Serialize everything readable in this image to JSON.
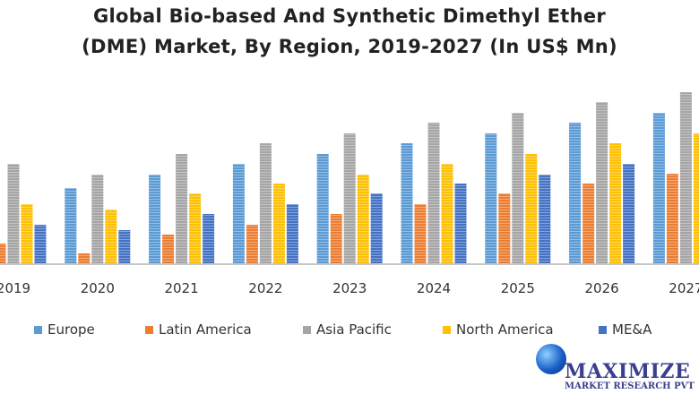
{
  "chart_data": {
    "type": "bar",
    "title_line1": "Global Bio-based And Synthetic Dimethyl Ether",
    "title_line2": "(DME) Market, By Region, 2019-2027 (In US$ Mn)",
    "xlabel": "",
    "ylabel": "",
    "ylim": [
      0,
      200
    ],
    "grid": false,
    "legend_position": "bottom",
    "categories": [
      "2019",
      "2020",
      "2021",
      "2022",
      "2023",
      "2024",
      "2025",
      "2026",
      "2027"
    ],
    "series": [
      {
        "name": "Europe",
        "color": "#5b9bd5",
        "values": [
          96,
          85,
          100,
          112,
          123,
          135,
          146,
          158,
          169
        ]
      },
      {
        "name": "Latin America",
        "color": "#ed7d31",
        "values": [
          23,
          12,
          33,
          44,
          56,
          67,
          79,
          90,
          101
        ]
      },
      {
        "name": "Asia Pacific",
        "color": "#a5a5a5",
        "values": [
          112,
          100,
          123,
          135,
          146,
          158,
          169,
          181,
          192
        ]
      },
      {
        "name": "North America",
        "color": "#ffc000",
        "values": [
          67,
          61,
          79,
          90,
          100,
          112,
          123,
          135,
          146
        ]
      },
      {
        "name": "ME&A",
        "color": "#4472c4",
        "values": [
          44,
          38,
          56,
          67,
          79,
          90,
          100,
          112,
          123
        ]
      }
    ]
  },
  "logo": {
    "line1": "MAXIMIZE",
    "line2": "MARKET RESEARCH PVT"
  }
}
